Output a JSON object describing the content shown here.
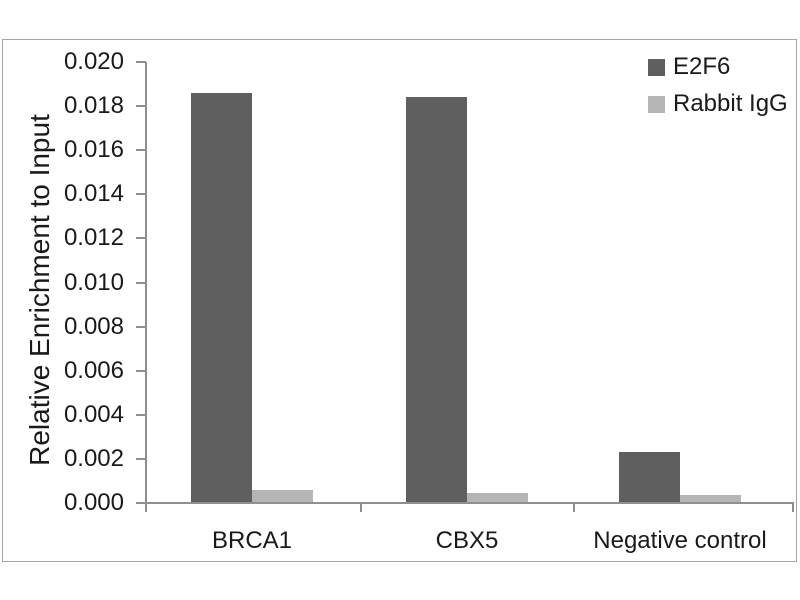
{
  "chart_data": {
    "type": "bar",
    "title": "",
    "xlabel": "",
    "ylabel": "Relative Enrichment to Input",
    "categories": [
      "BRCA1",
      "CBX5",
      "Negative control"
    ],
    "series": [
      {
        "name": "E2F6",
        "color": "#5f5f5f",
        "values": [
          0.0186,
          0.0184,
          0.0023
        ]
      },
      {
        "name": "Rabbit IgG",
        "color": "#b5b5b5",
        "values": [
          0.0006,
          0.00045,
          0.00035
        ]
      }
    ],
    "ylim": [
      0,
      0.02
    ],
    "ytick_step": 0.002,
    "ytick_labels": [
      "0.000",
      "0.002",
      "0.004",
      "0.006",
      "0.008",
      "0.010",
      "0.012",
      "0.014",
      "0.016",
      "0.018",
      "0.020"
    ],
    "grid": false,
    "legend_position": "top-right",
    "axis_color": "#8f8f8f",
    "text_color": "#1a1a1a",
    "frame_color": "#a6a6a6",
    "background_color": "#ffffff"
  }
}
